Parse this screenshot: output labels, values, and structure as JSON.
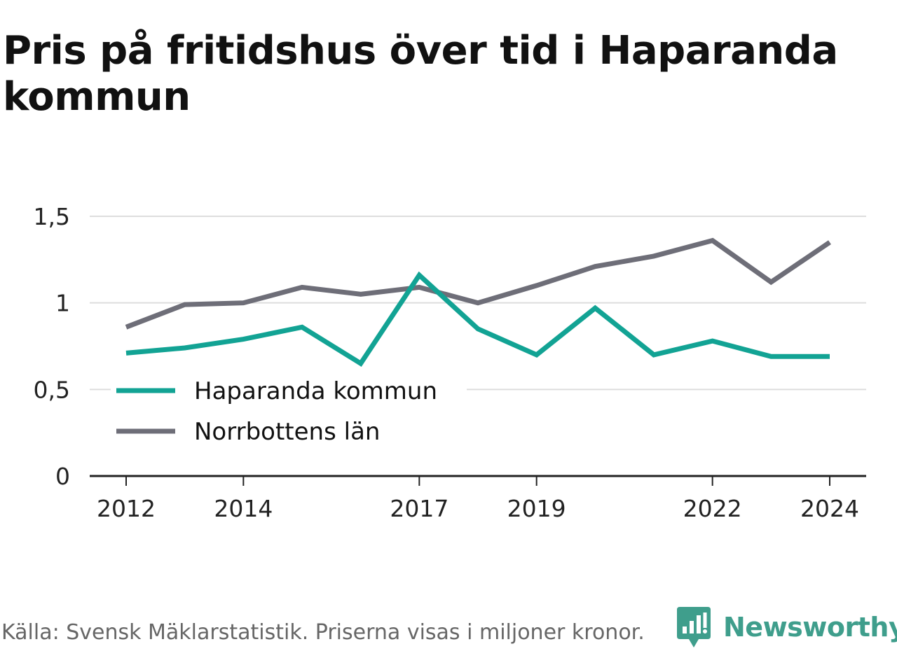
{
  "title": "Pris på fritidshus över tid i Haparanda kommun",
  "source": "Källa: Svensk Mäklarstatistik. Priserna visas i miljoner kronor.",
  "brand": {
    "name": "Newsworthy",
    "icon": "newsworthy-logo-icon",
    "color": "#3f9e8c"
  },
  "chart_data": {
    "type": "line",
    "title": "Pris på fritidshus över tid i Haparanda kommun",
    "xlabel": "",
    "ylabel": "",
    "x": [
      2012,
      2013,
      2014,
      2015,
      2016,
      2017,
      2018,
      2019,
      2020,
      2021,
      2022,
      2023,
      2024
    ],
    "x_ticks": [
      2012,
      2014,
      2017,
      2019,
      2022,
      2024
    ],
    "y_ticks": [
      0,
      0.5,
      1,
      1.5
    ],
    "y_tick_labels": [
      "0",
      "0,5",
      "1",
      "1,5"
    ],
    "ylim": [
      0,
      1.5
    ],
    "grid": true,
    "legend_position": "bottom-left",
    "series": [
      {
        "name": "Haparanda kommun",
        "color": "#12a394",
        "values": [
          0.71,
          0.74,
          0.79,
          0.86,
          0.65,
          1.16,
          0.85,
          0.7,
          0.97,
          0.7,
          0.78,
          0.69,
          0.69
        ]
      },
      {
        "name": "Norrbottens län",
        "color": "#6e6e78",
        "values": [
          0.86,
          0.99,
          1.0,
          1.09,
          1.05,
          1.09,
          1.0,
          1.1,
          1.21,
          1.27,
          1.36,
          1.12,
          1.35
        ]
      }
    ]
  }
}
